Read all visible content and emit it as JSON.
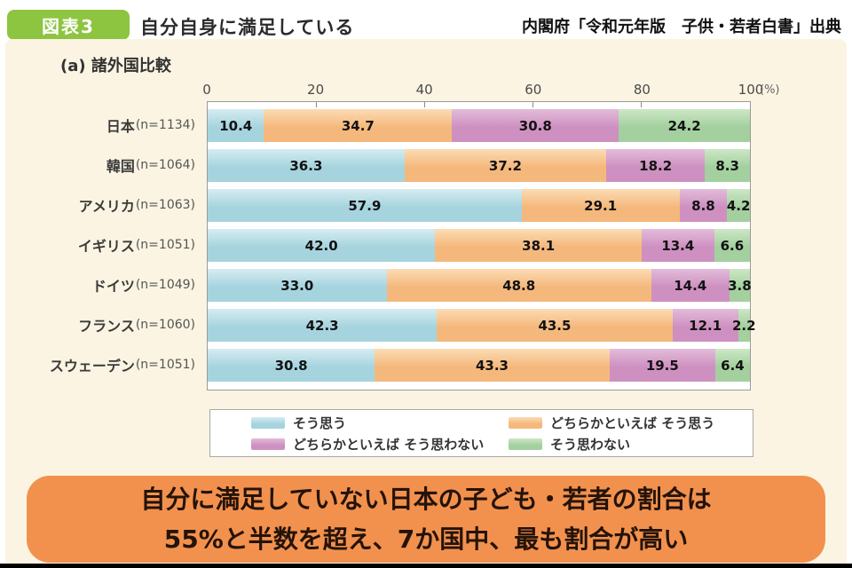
{
  "header": {
    "badge": "図表3",
    "title": "自分自身に満足している",
    "source": "内閣府「令和元年版　子供・若者白書」出典"
  },
  "section_label": "(a) 諸外国比較",
  "chart_data": {
    "type": "bar",
    "subtype": "horizontal-stacked",
    "title": "自分自身に満足している (a)諸外国比較",
    "unit": "(%)",
    "axis_ticks": [
      0,
      20,
      40,
      60,
      80,
      100
    ],
    "xlim": [
      0,
      100
    ],
    "grid": false,
    "legend_position": "bottom",
    "categories": [
      {
        "country": "日本",
        "n": "(n=1134)"
      },
      {
        "country": "韓国",
        "n": "(n=1064)"
      },
      {
        "country": "アメリカ",
        "n": "(n=1063)"
      },
      {
        "country": "イギリス",
        "n": "(n=1051)"
      },
      {
        "country": "ドイツ",
        "n": "(n=1049)"
      },
      {
        "country": "フランス",
        "n": "(n=1060)"
      },
      {
        "country": "スウェーデン",
        "n": "(n=1051)"
      }
    ],
    "series": [
      {
        "name": "そう思う",
        "color": "#a5d4df",
        "color_light": "#d6ecf1",
        "values": [
          10.4,
          36.3,
          57.9,
          42.0,
          33.0,
          42.3,
          30.8
        ]
      },
      {
        "name": "どちらかといえば そう思う",
        "color": "#f5b87c",
        "color_light": "#fbdcb4",
        "values": [
          34.7,
          37.2,
          29.1,
          38.1,
          48.8,
          43.5,
          43.3
        ]
      },
      {
        "name": "どちらかといえば そう思わない",
        "color": "#ce90c1",
        "color_light": "#e3bcd9",
        "values": [
          30.8,
          18.2,
          8.8,
          13.4,
          14.4,
          12.1,
          19.5
        ]
      },
      {
        "name": "そう思わない",
        "color": "#a3d09e",
        "color_light": "#cde7c6",
        "values": [
          24.2,
          8.3,
          4.2,
          6.6,
          3.8,
          2.2,
          6.4
        ]
      }
    ]
  },
  "banner": {
    "line1": "自分に満足していない日本の子ども・若者の割合は",
    "line2": "55%と半数を超え、7か国中、最も割合が高い"
  },
  "colors": {
    "badge_green": "#8dc540",
    "panel_cream": "#fbf4e2",
    "banner_orange": "#f2914e"
  }
}
